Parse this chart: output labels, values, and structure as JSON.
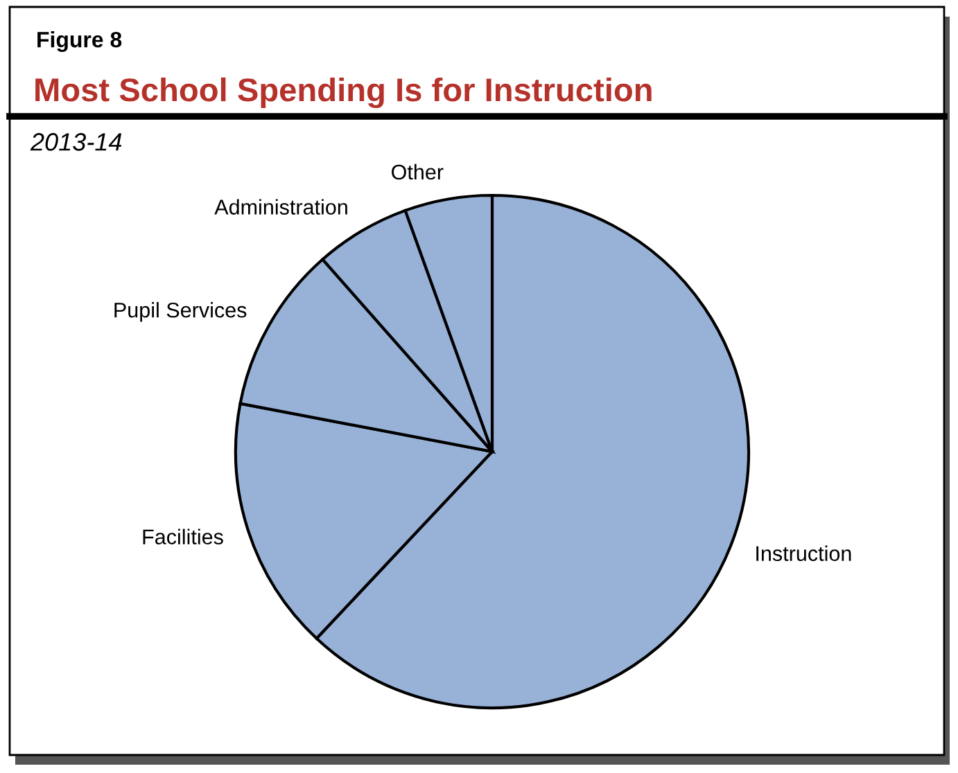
{
  "chart_data": {
    "type": "pie",
    "title": "Most School Spending Is for Instruction",
    "subtitle": "2013-14",
    "annotations": [
      "Figure 8"
    ],
    "categories": [
      "Instruction",
      "Facilities",
      "Pupil Services",
      "Administration",
      "Other"
    ],
    "values": [
      62,
      16,
      10.5,
      6,
      5.5
    ],
    "colors": [
      "#98b1d6",
      "#98b1d6",
      "#98b1d6",
      "#98b1d6",
      "#98b1d6"
    ],
    "legend": false
  }
}
